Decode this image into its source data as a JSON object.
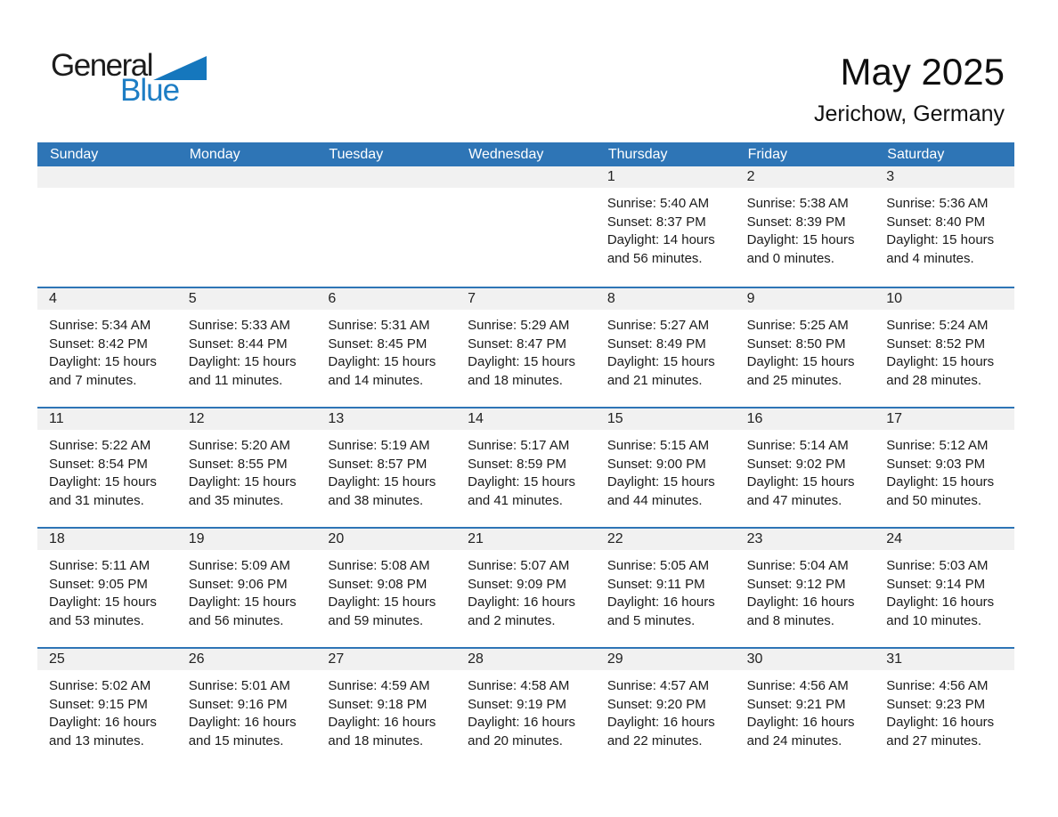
{
  "logo": {
    "word1": "General",
    "word2": "Blue"
  },
  "header": {
    "title": "May 2025",
    "subtitle": "Jerichow, Germany"
  },
  "colors": {
    "header_blue": "#2e75b6",
    "row_divider_blue": "#2e75b6",
    "day_strip_gray": "#f1f1f1",
    "logo_blue": "#1d7dc4"
  },
  "day_headers": [
    "Sunday",
    "Monday",
    "Tuesday",
    "Wednesday",
    "Thursday",
    "Friday",
    "Saturday"
  ],
  "weeks": [
    {
      "days": [
        null,
        null,
        null,
        null,
        {
          "number": "1",
          "lines": [
            "Sunrise: 5:40 AM",
            "Sunset: 8:37 PM",
            "Daylight: 14 hours",
            "and 56 minutes."
          ]
        },
        {
          "number": "2",
          "lines": [
            "Sunrise: 5:38 AM",
            "Sunset: 8:39 PM",
            "Daylight: 15 hours",
            "and 0 minutes."
          ]
        },
        {
          "number": "3",
          "lines": [
            "Sunrise: 5:36 AM",
            "Sunset: 8:40 PM",
            "Daylight: 15 hours",
            "and 4 minutes."
          ]
        }
      ]
    },
    {
      "days": [
        {
          "number": "4",
          "lines": [
            "Sunrise: 5:34 AM",
            "Sunset: 8:42 PM",
            "Daylight: 15 hours",
            "and 7 minutes."
          ]
        },
        {
          "number": "5",
          "lines": [
            "Sunrise: 5:33 AM",
            "Sunset: 8:44 PM",
            "Daylight: 15 hours",
            "and 11 minutes."
          ]
        },
        {
          "number": "6",
          "lines": [
            "Sunrise: 5:31 AM",
            "Sunset: 8:45 PM",
            "Daylight: 15 hours",
            "and 14 minutes."
          ]
        },
        {
          "number": "7",
          "lines": [
            "Sunrise: 5:29 AM",
            "Sunset: 8:47 PM",
            "Daylight: 15 hours",
            "and 18 minutes."
          ]
        },
        {
          "number": "8",
          "lines": [
            "Sunrise: 5:27 AM",
            "Sunset: 8:49 PM",
            "Daylight: 15 hours",
            "and 21 minutes."
          ]
        },
        {
          "number": "9",
          "lines": [
            "Sunrise: 5:25 AM",
            "Sunset: 8:50 PM",
            "Daylight: 15 hours",
            "and 25 minutes."
          ]
        },
        {
          "number": "10",
          "lines": [
            "Sunrise: 5:24 AM",
            "Sunset: 8:52 PM",
            "Daylight: 15 hours",
            "and 28 minutes."
          ]
        }
      ]
    },
    {
      "days": [
        {
          "number": "11",
          "lines": [
            "Sunrise: 5:22 AM",
            "Sunset: 8:54 PM",
            "Daylight: 15 hours",
            "and 31 minutes."
          ]
        },
        {
          "number": "12",
          "lines": [
            "Sunrise: 5:20 AM",
            "Sunset: 8:55 PM",
            "Daylight: 15 hours",
            "and 35 minutes."
          ]
        },
        {
          "number": "13",
          "lines": [
            "Sunrise: 5:19 AM",
            "Sunset: 8:57 PM",
            "Daylight: 15 hours",
            "and 38 minutes."
          ]
        },
        {
          "number": "14",
          "lines": [
            "Sunrise: 5:17 AM",
            "Sunset: 8:59 PM",
            "Daylight: 15 hours",
            "and 41 minutes."
          ]
        },
        {
          "number": "15",
          "lines": [
            "Sunrise: 5:15 AM",
            "Sunset: 9:00 PM",
            "Daylight: 15 hours",
            "and 44 minutes."
          ]
        },
        {
          "number": "16",
          "lines": [
            "Sunrise: 5:14 AM",
            "Sunset: 9:02 PM",
            "Daylight: 15 hours",
            "and 47 minutes."
          ]
        },
        {
          "number": "17",
          "lines": [
            "Sunrise: 5:12 AM",
            "Sunset: 9:03 PM",
            "Daylight: 15 hours",
            "and 50 minutes."
          ]
        }
      ]
    },
    {
      "days": [
        {
          "number": "18",
          "lines": [
            "Sunrise: 5:11 AM",
            "Sunset: 9:05 PM",
            "Daylight: 15 hours",
            "and 53 minutes."
          ]
        },
        {
          "number": "19",
          "lines": [
            "Sunrise: 5:09 AM",
            "Sunset: 9:06 PM",
            "Daylight: 15 hours",
            "and 56 minutes."
          ]
        },
        {
          "number": "20",
          "lines": [
            "Sunrise: 5:08 AM",
            "Sunset: 9:08 PM",
            "Daylight: 15 hours",
            "and 59 minutes."
          ]
        },
        {
          "number": "21",
          "lines": [
            "Sunrise: 5:07 AM",
            "Sunset: 9:09 PM",
            "Daylight: 16 hours",
            "and 2 minutes."
          ]
        },
        {
          "number": "22",
          "lines": [
            "Sunrise: 5:05 AM",
            "Sunset: 9:11 PM",
            "Daylight: 16 hours",
            "and 5 minutes."
          ]
        },
        {
          "number": "23",
          "lines": [
            "Sunrise: 5:04 AM",
            "Sunset: 9:12 PM",
            "Daylight: 16 hours",
            "and 8 minutes."
          ]
        },
        {
          "number": "24",
          "lines": [
            "Sunrise: 5:03 AM",
            "Sunset: 9:14 PM",
            "Daylight: 16 hours",
            "and 10 minutes."
          ]
        }
      ]
    },
    {
      "days": [
        {
          "number": "25",
          "lines": [
            "Sunrise: 5:02 AM",
            "Sunset: 9:15 PM",
            "Daylight: 16 hours",
            "and 13 minutes."
          ]
        },
        {
          "number": "26",
          "lines": [
            "Sunrise: 5:01 AM",
            "Sunset: 9:16 PM",
            "Daylight: 16 hours",
            "and 15 minutes."
          ]
        },
        {
          "number": "27",
          "lines": [
            "Sunrise: 4:59 AM",
            "Sunset: 9:18 PM",
            "Daylight: 16 hours",
            "and 18 minutes."
          ]
        },
        {
          "number": "28",
          "lines": [
            "Sunrise: 4:58 AM",
            "Sunset: 9:19 PM",
            "Daylight: 16 hours",
            "and 20 minutes."
          ]
        },
        {
          "number": "29",
          "lines": [
            "Sunrise: 4:57 AM",
            "Sunset: 9:20 PM",
            "Daylight: 16 hours",
            "and 22 minutes."
          ]
        },
        {
          "number": "30",
          "lines": [
            "Sunrise: 4:56 AM",
            "Sunset: 9:21 PM",
            "Daylight: 16 hours",
            "and 24 minutes."
          ]
        },
        {
          "number": "31",
          "lines": [
            "Sunrise: 4:56 AM",
            "Sunset: 9:23 PM",
            "Daylight: 16 hours",
            "and 27 minutes."
          ]
        }
      ]
    }
  ]
}
